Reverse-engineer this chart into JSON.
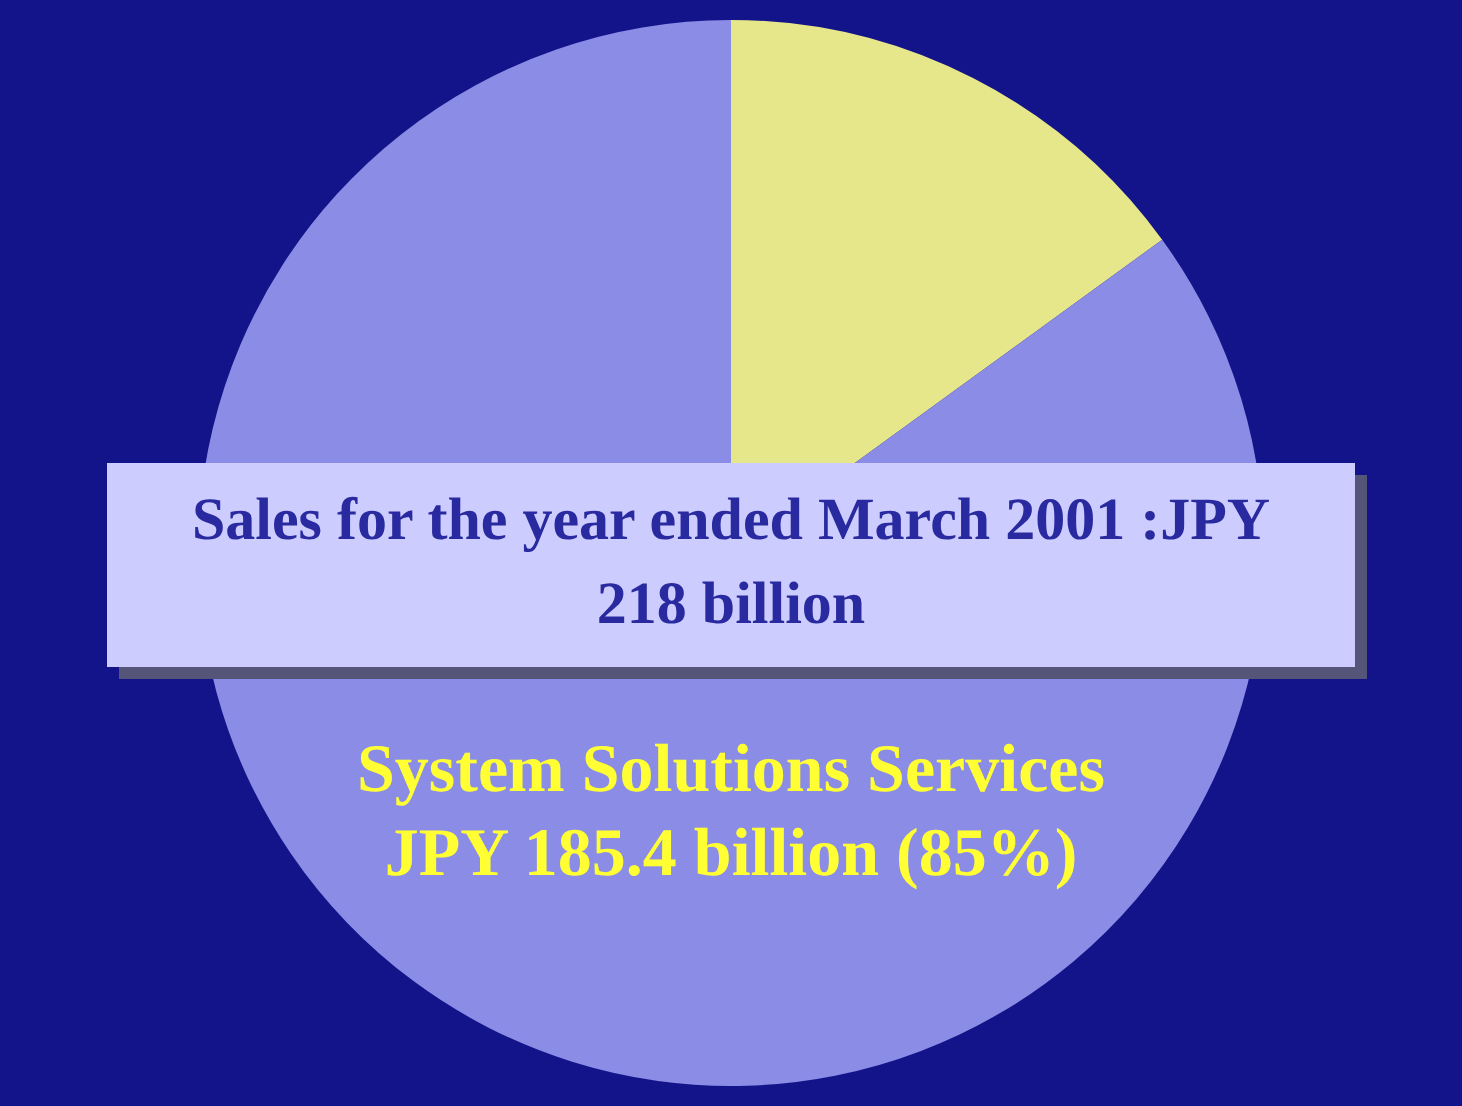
{
  "chart_data": {
    "type": "pie",
    "categories": [
      null,
      "System Solutions Services"
    ],
    "values": [
      15,
      85
    ],
    "colors": [
      "#e6e68a",
      "#8a8ce6"
    ],
    "value_labels": [
      null,
      "JPY 185.4 billion (85%)"
    ],
    "annotations": [
      "Sales for the year ended March 2001 :JPY 218 billion"
    ],
    "legend": false
  }
}
